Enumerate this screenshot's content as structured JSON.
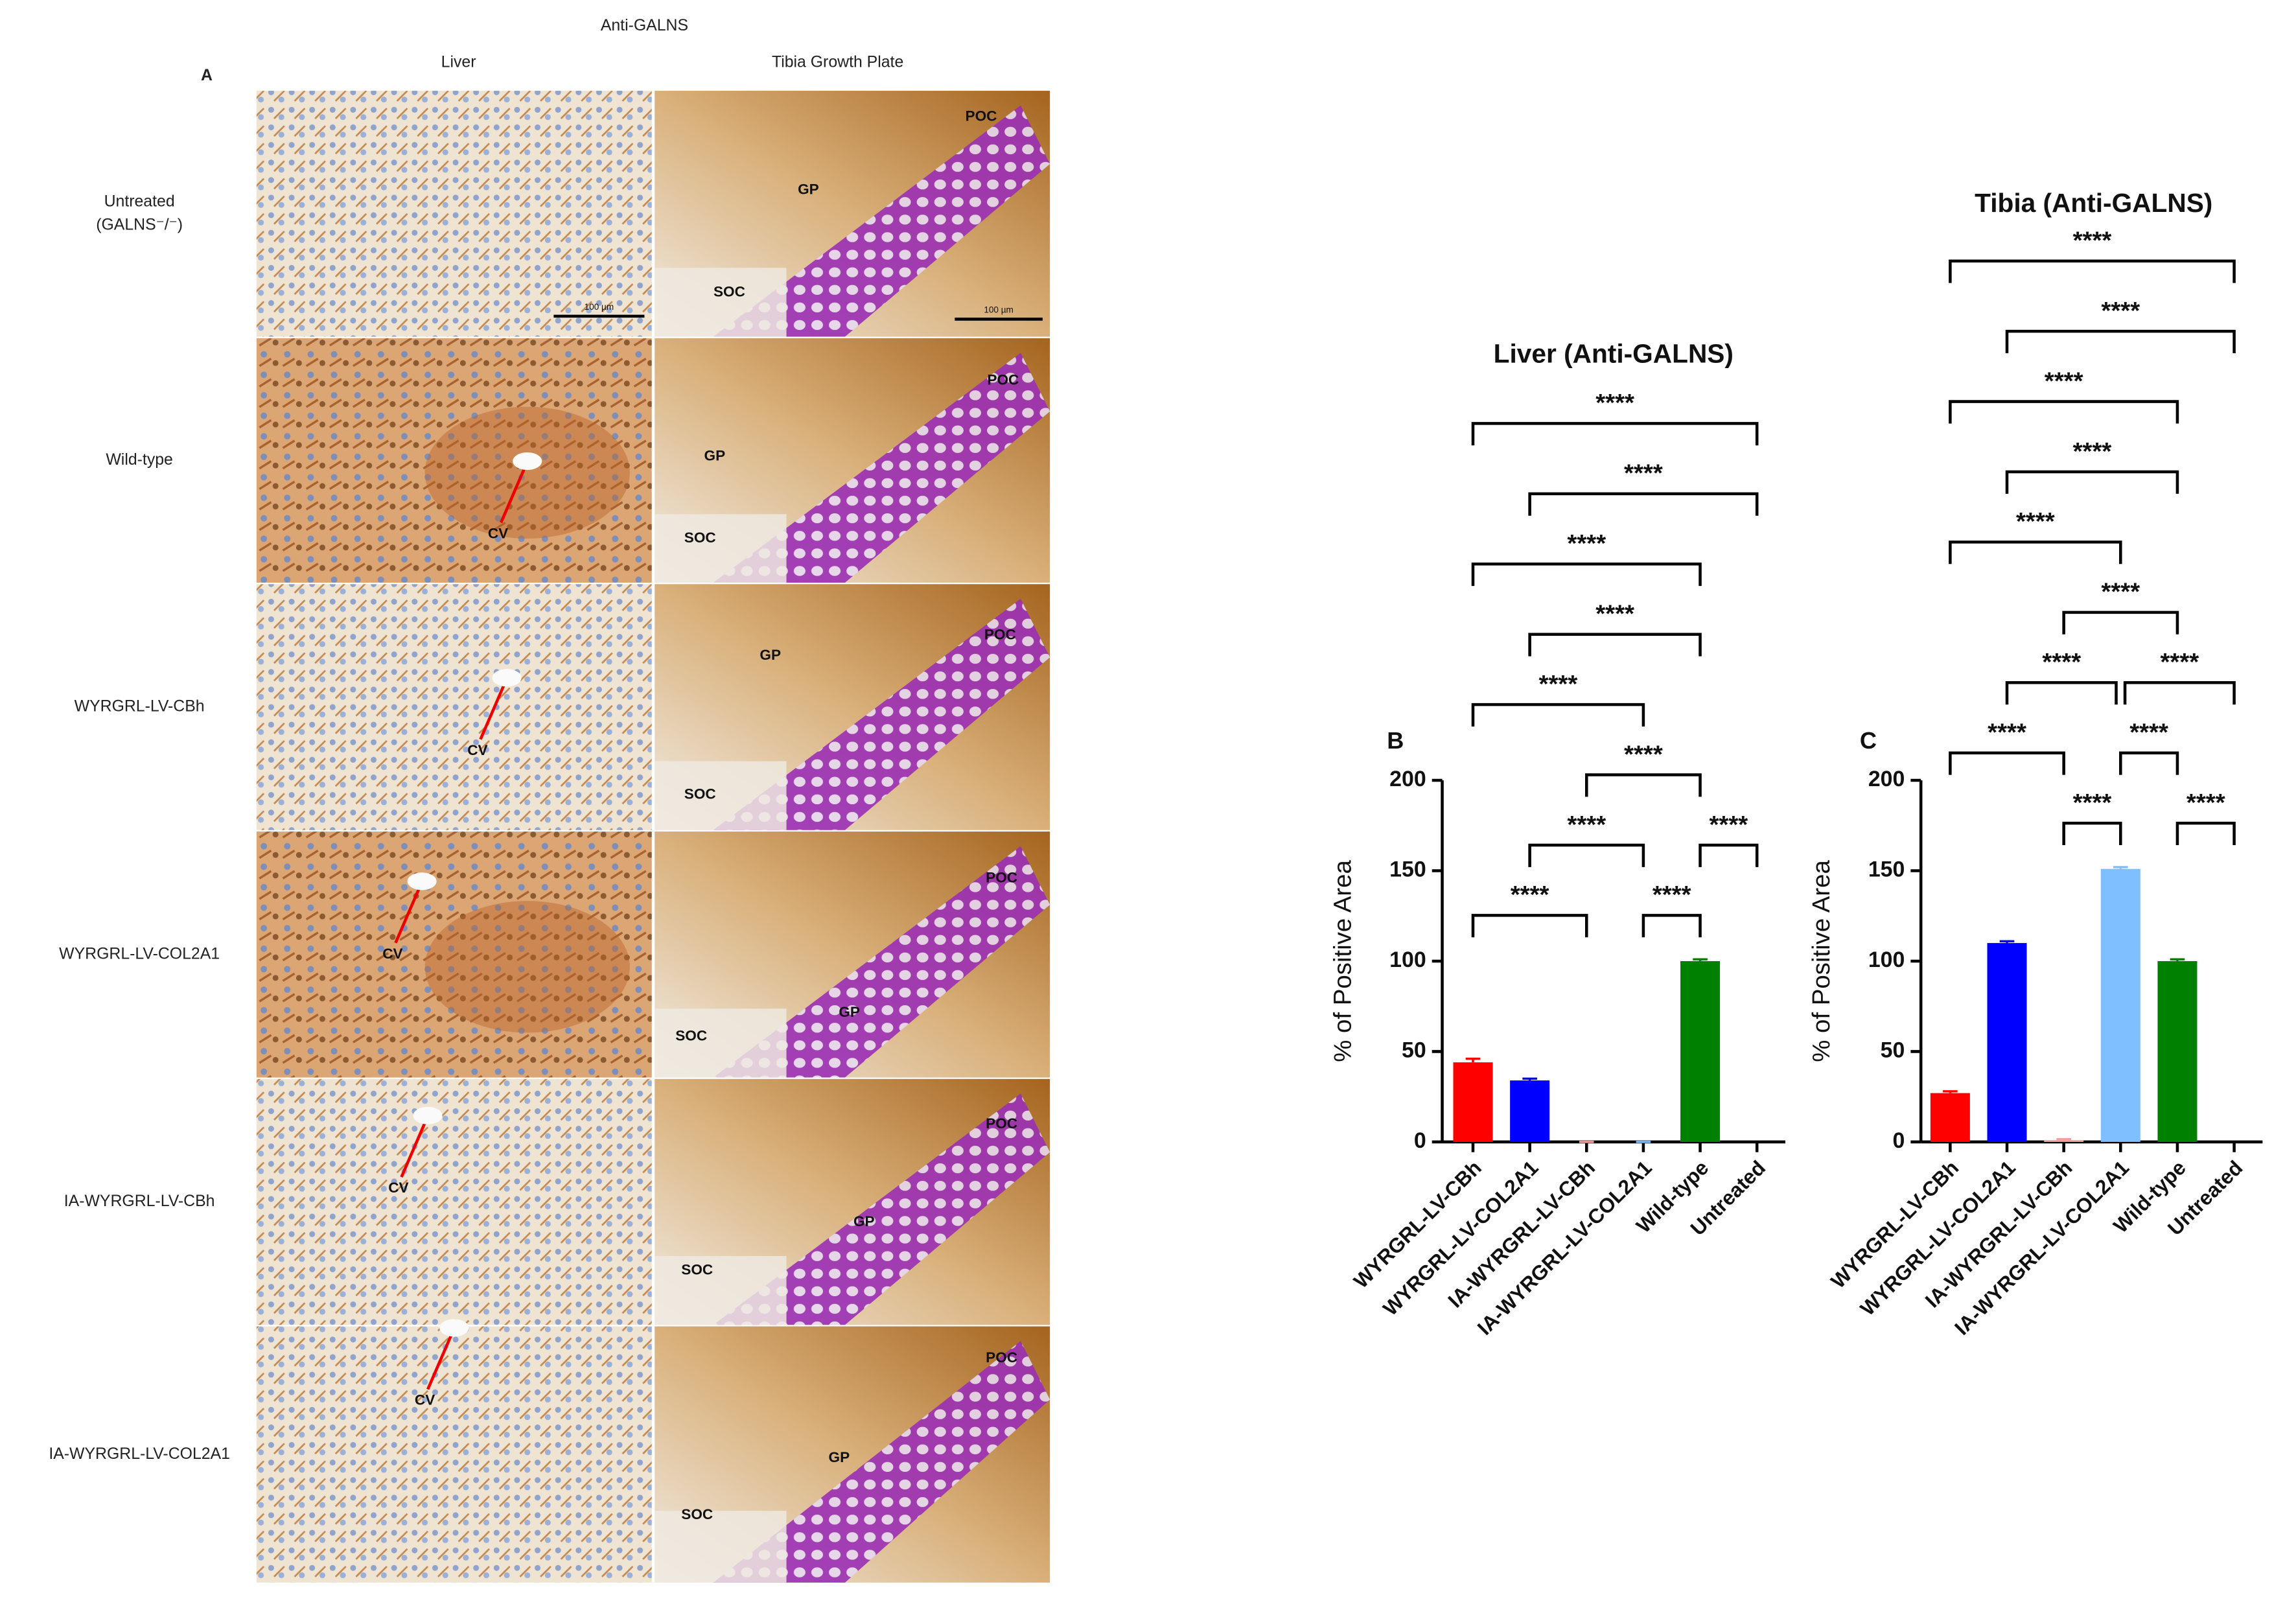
{
  "panel_a": {
    "letter": "A",
    "stain": "Anti-GALNS",
    "columns": [
      "Liver",
      "Tibia Growth Plate"
    ],
    "rows": [
      {
        "label": [
          "Untreated",
          "(GALNS⁻/⁻)"
        ],
        "liver": [
          "100 µm"
        ],
        "tibia": [
          "POC",
          "GP",
          "SOC",
          "100 µm"
        ]
      },
      {
        "label": [
          "Wild-type"
        ],
        "liver": [
          "CV"
        ],
        "tibia": [
          "POC",
          "GP",
          "SOC"
        ]
      },
      {
        "label": [
          "WYRGRL-LV-CBh"
        ],
        "liver": [
          "CV"
        ],
        "tibia": [
          "POC",
          "GP",
          "SOC"
        ]
      },
      {
        "label": [
          "WYRGRL-LV-COL2A1"
        ],
        "liver": [
          "CV"
        ],
        "tibia": [
          "POC",
          "GP",
          "SOC"
        ]
      },
      {
        "label": [
          "IA-WYRGRL-LV-CBh"
        ],
        "liver": [
          "CV"
        ],
        "tibia": [
          "POC",
          "GP",
          "SOC"
        ]
      },
      {
        "label": [
          "IA-WYRGRL-LV-COL2A1"
        ],
        "liver": [
          "CV"
        ],
        "tibia": [
          "POC",
          "GP",
          "SOC"
        ]
      }
    ]
  },
  "chart_data": [
    {
      "type": "bar",
      "panel": "B",
      "title": "Liver (Anti-GALNS)",
      "ylabel": "% of Positive Area",
      "categories": [
        "WYRGRL-LV-CBh",
        "WYRGRL-LV-COL2A1",
        "IA-WYRGRL-LV-CBh",
        "IA-WYRGRL-LV-COL2A1",
        "Wild-type",
        "Untreated"
      ],
      "values": [
        44,
        34,
        0,
        0,
        100,
        0
      ],
      "errors": [
        2,
        1,
        0,
        0,
        1,
        0
      ],
      "colors": [
        "#ff0000",
        "#0000ff",
        "#f4a0a0",
        "#80bfff",
        "#008000",
        "#000000"
      ],
      "ylim": [
        0,
        200
      ],
      "yticks": [
        0,
        50,
        100,
        150,
        200
      ],
      "significance": [
        {
          "groups": [
            "WYRGRL-LV-CBh",
            "Untreated"
          ],
          "label": "****"
        },
        {
          "groups": [
            "WYRGRL-LV-COL2A1",
            "Untreated"
          ],
          "label": "****"
        },
        {
          "groups": [
            "WYRGRL-LV-CBh",
            "Wild-type"
          ],
          "label": "****"
        },
        {
          "groups": [
            "WYRGRL-LV-COL2A1",
            "Wild-type"
          ],
          "label": "****"
        },
        {
          "groups": [
            "WYRGRL-LV-CBh",
            "IA-WYRGRL-LV-COL2A1"
          ],
          "label": "****"
        },
        {
          "groups": [
            "IA-WYRGRL-LV-CBh",
            "Wild-type"
          ],
          "label": "****"
        },
        {
          "groups": [
            "WYRGRL-LV-COL2A1",
            "IA-WYRGRL-LV-COL2A1"
          ],
          "label": "****"
        },
        {
          "groups": [
            "Wild-type",
            "Untreated"
          ],
          "label": "****"
        },
        {
          "groups": [
            "WYRGRL-LV-CBh",
            "IA-WYRGRL-LV-CBh"
          ],
          "label": "****"
        },
        {
          "groups": [
            "IA-WYRGRL-LV-COL2A1",
            "Wild-type"
          ],
          "label": "****"
        }
      ]
    },
    {
      "type": "bar",
      "panel": "C",
      "title": "Tibia (Anti-GALNS)",
      "ylabel": "% of Positive Area",
      "categories": [
        "WYRGRL-LV-CBh",
        "WYRGRL-LV-COL2A1",
        "IA-WYRGRL-LV-CBh",
        "IA-WYRGRL-LV-COL2A1",
        "Wild-type",
        "Untreated"
      ],
      "values": [
        27,
        110,
        1,
        151,
        100,
        0
      ],
      "errors": [
        1,
        1,
        0.5,
        1,
        1,
        0
      ],
      "colors": [
        "#ff0000",
        "#0000ff",
        "#f4a0a0",
        "#80bfff",
        "#008000",
        "#000000"
      ],
      "ylim": [
        0,
        200
      ],
      "yticks": [
        0,
        50,
        100,
        150,
        200
      ],
      "significance": [
        {
          "groups": [
            "WYRGRL-LV-CBh",
            "Untreated"
          ],
          "label": "****"
        },
        {
          "groups": [
            "WYRGRL-LV-COL2A1",
            "Untreated"
          ],
          "label": "****"
        },
        {
          "groups": [
            "WYRGRL-LV-CBh",
            "Wild-type"
          ],
          "label": "****"
        },
        {
          "groups": [
            "WYRGRL-LV-COL2A1",
            "Wild-type"
          ],
          "label": "****"
        },
        {
          "groups": [
            "WYRGRL-LV-CBh",
            "IA-WYRGRL-LV-COL2A1"
          ],
          "label": "****"
        },
        {
          "groups": [
            "IA-WYRGRL-LV-CBh",
            "Wild-type"
          ],
          "label": "****"
        },
        {
          "groups": [
            "WYRGRL-LV-COL2A1",
            "IA-WYRGRL-LV-COL2A1"
          ],
          "label": "****"
        },
        {
          "groups": [
            "IA-WYRGRL-LV-COL2A1",
            "Untreated"
          ],
          "label": "****"
        },
        {
          "groups": [
            "WYRGRL-LV-CBh",
            "IA-WYRGRL-LV-CBh"
          ],
          "label": "****"
        },
        {
          "groups": [
            "IA-WYRGRL-LV-COL2A1",
            "Wild-type"
          ],
          "label": "****"
        },
        {
          "groups": [
            "IA-WYRGRL-LV-CBh",
            "IA-WYRGRL-LV-COL2A1"
          ],
          "label": "****"
        },
        {
          "groups": [
            "Wild-type",
            "Untreated"
          ],
          "label": "****"
        }
      ]
    }
  ]
}
